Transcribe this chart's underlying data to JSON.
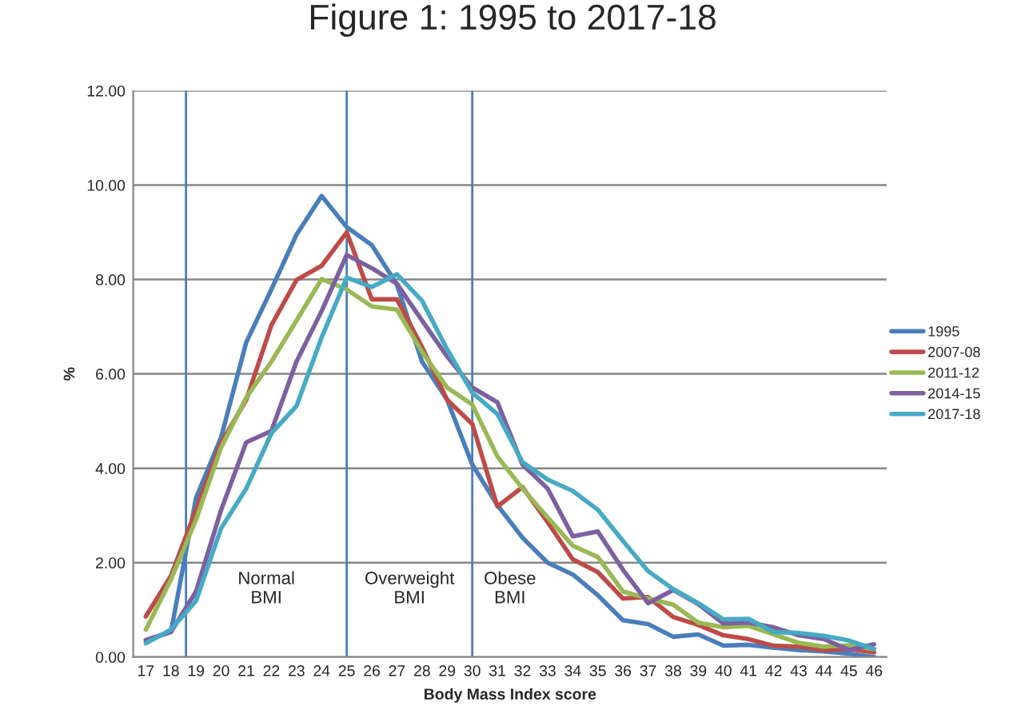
{
  "chart_data": {
    "type": "line",
    "title": "Figure 1: 1995 to 2017-18",
    "xlabel": "Body Mass Index score",
    "ylabel": "%",
    "x": [
      17,
      18,
      19,
      20,
      21,
      22,
      23,
      24,
      25,
      26,
      27,
      28,
      29,
      30,
      31,
      32,
      33,
      34,
      35,
      36,
      37,
      38,
      39,
      40,
      41,
      42,
      43,
      44,
      45,
      46
    ],
    "series": [
      {
        "name": "1995",
        "color": "#4a7ebb",
        "values": [
          0.35,
          0.53,
          3.37,
          4.66,
          6.67,
          7.79,
          8.95,
          9.77,
          9.11,
          8.73,
          7.89,
          6.26,
          5.45,
          4.08,
          3.22,
          2.53,
          2.0,
          1.75,
          1.31,
          0.78,
          0.7,
          0.43,
          0.48,
          0.24,
          0.26,
          0.2,
          0.15,
          0.12,
          0.07,
          0.0
        ]
      },
      {
        "name": "2007-08",
        "color": "#be4b48",
        "values": [
          0.86,
          1.72,
          3.12,
          4.54,
          5.45,
          7.03,
          7.99,
          8.29,
          9.0,
          7.58,
          7.58,
          6.57,
          5.45,
          4.94,
          3.19,
          3.6,
          2.86,
          2.07,
          1.8,
          1.24,
          1.27,
          0.85,
          0.68,
          0.46,
          0.38,
          0.24,
          0.22,
          0.15,
          0.17,
          0.1
        ]
      },
      {
        "name": "2011-12",
        "color": "#98b954",
        "values": [
          0.58,
          1.64,
          2.91,
          4.44,
          5.5,
          6.26,
          7.13,
          8.01,
          7.79,
          7.43,
          7.36,
          6.47,
          5.71,
          5.35,
          4.25,
          3.57,
          2.96,
          2.36,
          2.12,
          1.39,
          1.24,
          1.11,
          0.73,
          0.63,
          0.66,
          0.48,
          0.3,
          0.22,
          0.25,
          0.17
        ]
      },
      {
        "name": "2014-15",
        "color": "#7d60a0",
        "values": [
          0.36,
          0.53,
          1.39,
          3.12,
          4.55,
          4.79,
          6.26,
          7.33,
          8.52,
          8.24,
          7.91,
          7.13,
          6.37,
          5.71,
          5.4,
          4.08,
          3.57,
          2.56,
          2.66,
          1.85,
          1.14,
          1.42,
          1.12,
          0.71,
          0.73,
          0.63,
          0.46,
          0.38,
          0.15,
          0.27
        ]
      },
      {
        "name": "2017-18",
        "color": "#46aac5",
        "values": [
          0.29,
          0.58,
          1.19,
          2.73,
          3.57,
          4.74,
          5.32,
          6.77,
          8.04,
          7.84,
          8.11,
          7.55,
          6.52,
          5.6,
          5.15,
          4.13,
          3.76,
          3.52,
          3.12,
          2.46,
          1.82,
          1.44,
          1.14,
          0.8,
          0.81,
          0.53,
          0.51,
          0.45,
          0.35,
          0.17
        ]
      }
    ],
    "xlim": [
      16.5,
      46.5
    ],
    "xticks": [
      17,
      18,
      19,
      20,
      21,
      22,
      23,
      24,
      25,
      26,
      27,
      28,
      29,
      30,
      31,
      32,
      33,
      34,
      35,
      36,
      37,
      38,
      39,
      40,
      41,
      42,
      43,
      44,
      45,
      46
    ],
    "ylim": [
      0,
      12
    ],
    "yticks": [
      {
        "value": 0,
        "label": "0.00"
      },
      {
        "value": 2,
        "label": "2.00"
      },
      {
        "value": 4,
        "label": "4.00"
      },
      {
        "value": 6,
        "label": "6.00"
      },
      {
        "value": 8,
        "label": "8.00"
      },
      {
        "value": 10,
        "label": "10.00"
      },
      {
        "value": 12,
        "label": "12.00"
      }
    ],
    "grid": "y",
    "legend": "right",
    "marker": "none",
    "line_style": "solid",
    "ref_lines": [
      {
        "axis": "x",
        "value": 18.6,
        "color": "#4a7ebb"
      },
      {
        "axis": "x",
        "value": 25,
        "color": "#4a7ebb"
      },
      {
        "axis": "x",
        "value": 30,
        "color": "#4a7ebb"
      }
    ],
    "annotations": [
      "Normal\nBMI",
      "Overweight\nBMI",
      "Obese\nBMI"
    ]
  }
}
